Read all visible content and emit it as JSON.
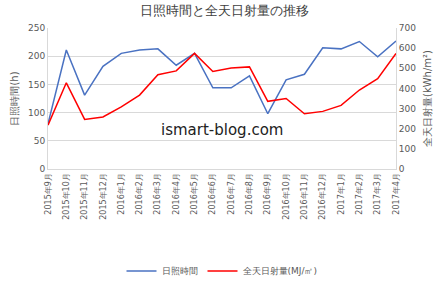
{
  "chart_data": {
    "type": "line",
    "title": "日照時間と全天日射量の推移",
    "y_label": "日照時間(h)",
    "y2_label": "全天日射量(kWh/m²)",
    "annotations": [
      "ismart-blog.com"
    ],
    "categories": [
      "2015年9月",
      "2015年10月",
      "2015年11月",
      "2015年12月",
      "2016年1月",
      "2016年2月",
      "2016年3月",
      "2016年4月",
      "2016年5月",
      "2016年6月",
      "2016年7月",
      "2016年8月",
      "2016年9月",
      "2016年10月",
      "2016年11月",
      "2016年12月",
      "2017年1月",
      "2017年2月",
      "2017年3月",
      "2017年4月"
    ],
    "series": [
      {
        "name": "日照時間",
        "color": "#4a72c2",
        "values": [
          80,
          211,
          131,
          182,
          205,
          211,
          213,
          184,
          205,
          144,
          144,
          165,
          98,
          158,
          168,
          215,
          213,
          226,
          199,
          227
        ]
      },
      {
        "name": "全天日射量(MJ/㎡)",
        "color": "#ff0000",
        "axis": "y2",
        "values": [
          218,
          428,
          246,
          258,
          308,
          367,
          468,
          487,
          574,
          484,
          501,
          507,
          336,
          350,
          274,
          286,
          316,
          392,
          448,
          574
        ]
      }
    ],
    "ylim": [
      0,
      250
    ],
    "yticks": [
      0,
      50,
      100,
      150,
      200,
      250
    ],
    "y2lim": [
      0,
      700
    ],
    "y2ticks": [
      0,
      100,
      200,
      300,
      400,
      500,
      600,
      700
    ],
    "grid": true,
    "legend": "bottom"
  }
}
